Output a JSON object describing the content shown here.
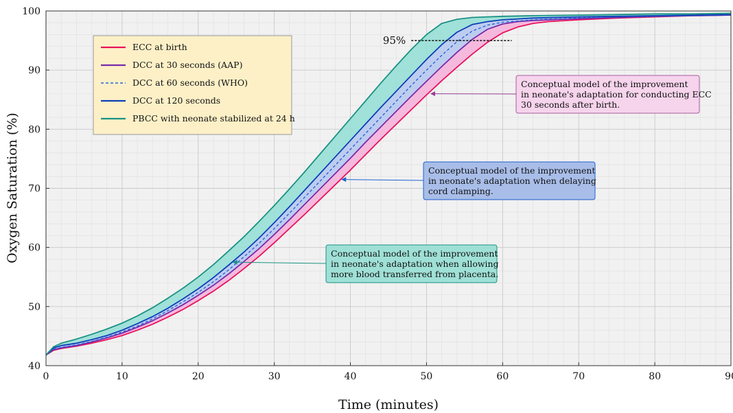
{
  "chart_data": {
    "type": "line",
    "xlabel": "Time (minutes)",
    "ylabel": "Oxygen Saturation (%)",
    "xlim": [
      0,
      90
    ],
    "ylim": [
      40,
      100
    ],
    "xticks": [
      "0",
      "10",
      "20",
      "30",
      "40",
      "50",
      "60",
      "70",
      "80",
      "90"
    ],
    "yticks": [
      "40",
      "50",
      "60",
      "70",
      "80",
      "90",
      "100"
    ],
    "grid": true,
    "legend_position": "top-left",
    "legend_background": "#fdf0c7",
    "series": [
      {
        "name": "ECC at birth",
        "color": "#e8125c",
        "dash": "solid",
        "x": [
          0,
          1,
          2,
          4,
          6,
          8,
          10,
          12,
          14,
          16,
          18,
          20,
          22,
          24,
          26,
          28,
          30,
          32,
          34,
          36,
          38,
          40,
          42,
          44,
          46,
          48,
          50,
          52,
          54,
          56,
          58,
          60,
          62,
          64,
          66,
          70,
          75,
          80,
          85,
          90
        ],
        "y": [
          41.8,
          42.6,
          42.9,
          43.3,
          43.8,
          44.4,
          45.1,
          46.0,
          47.0,
          48.2,
          49.5,
          51.0,
          52.6,
          54.4,
          56.4,
          58.5,
          60.8,
          63.2,
          65.6,
          68.1,
          70.6,
          73.1,
          75.7,
          78.3,
          80.8,
          83.3,
          85.8,
          88.2,
          90.5,
          92.7,
          94.7,
          96.3,
          97.3,
          97.9,
          98.2,
          98.5,
          98.8,
          99.0,
          99.2,
          99.3
        ]
      },
      {
        "name": "DCC at 30 seconds (AAP)",
        "color": "#7b2aa8",
        "dash": "solid",
        "x": [
          0,
          1,
          2,
          4,
          6,
          8,
          10,
          12,
          14,
          16,
          18,
          20,
          22,
          24,
          26,
          28,
          30,
          32,
          34,
          36,
          38,
          40,
          42,
          44,
          46,
          48,
          50,
          52,
          54,
          56,
          58,
          60,
          62,
          64,
          70,
          75,
          80,
          85,
          90
        ],
        "y": [
          41.8,
          42.7,
          43.0,
          43.4,
          44.0,
          44.7,
          45.5,
          46.5,
          47.6,
          48.9,
          50.3,
          51.9,
          53.6,
          55.5,
          57.6,
          59.8,
          62.2,
          64.7,
          67.3,
          69.9,
          72.5,
          75.1,
          77.8,
          80.4,
          83.0,
          85.6,
          88.1,
          90.6,
          93.0,
          95.2,
          96.9,
          97.8,
          98.2,
          98.4,
          98.7,
          98.9,
          99.1,
          99.2,
          99.3
        ]
      },
      {
        "name": "DCC at 60 seconds (WHO)",
        "color": "#2b62d6",
        "dash": "dashed",
        "x": [
          0,
          1,
          2,
          4,
          6,
          8,
          10,
          12,
          14,
          16,
          18,
          20,
          22,
          24,
          26,
          28,
          30,
          32,
          34,
          36,
          38,
          40,
          42,
          44,
          46,
          48,
          50,
          52,
          54,
          56,
          58,
          60,
          64,
          70,
          75,
          80,
          85,
          90
        ],
        "y": [
          41.8,
          42.8,
          43.1,
          43.5,
          44.1,
          44.8,
          45.7,
          46.7,
          47.9,
          49.3,
          50.8,
          52.4,
          54.2,
          56.2,
          58.4,
          60.7,
          63.2,
          65.8,
          68.5,
          71.2,
          73.9,
          76.6,
          79.3,
          82.0,
          84.7,
          87.4,
          90.0,
          92.5,
          94.8,
          96.6,
          97.6,
          98.1,
          98.5,
          98.8,
          99.0,
          99.1,
          99.2,
          99.3
        ]
      },
      {
        "name": "DCC at 120 seconds",
        "color": "#0b3fb8",
        "dash": "solid",
        "x": [
          0,
          1,
          2,
          4,
          6,
          8,
          10,
          12,
          14,
          16,
          18,
          20,
          22,
          24,
          26,
          28,
          30,
          32,
          34,
          36,
          38,
          40,
          42,
          44,
          46,
          48,
          50,
          52,
          54,
          56,
          58,
          60,
          64,
          70,
          75,
          80,
          85,
          90
        ],
        "y": [
          41.8,
          43.0,
          43.4,
          43.8,
          44.4,
          45.1,
          46.0,
          47.1,
          48.3,
          49.7,
          51.3,
          53.0,
          54.9,
          57.0,
          59.2,
          61.6,
          64.2,
          66.9,
          69.7,
          72.5,
          75.3,
          78.1,
          80.9,
          83.7,
          86.4,
          89.1,
          91.8,
          94.3,
          96.4,
          97.7,
          98.2,
          98.5,
          98.8,
          99.0,
          99.1,
          99.2,
          99.3,
          99.4
        ]
      },
      {
        "name": "PBCC with neonate stabilized at 24 h",
        "color": "#1a9282",
        "dash": "solid",
        "x": [
          0,
          1,
          2,
          4,
          6,
          8,
          10,
          12,
          14,
          16,
          18,
          20,
          22,
          24,
          26,
          28,
          30,
          32,
          34,
          36,
          38,
          40,
          42,
          44,
          46,
          48,
          50,
          52,
          54,
          56,
          58,
          60,
          64,
          70,
          75,
          80,
          85,
          90
        ],
        "y": [
          41.8,
          43.2,
          43.8,
          44.5,
          45.3,
          46.2,
          47.2,
          48.4,
          49.8,
          51.4,
          53.1,
          55.0,
          57.1,
          59.4,
          61.8,
          64.4,
          67.1,
          69.9,
          72.8,
          75.8,
          78.8,
          81.8,
          84.8,
          87.8,
          90.7,
          93.5,
          96.0,
          97.9,
          98.6,
          98.9,
          99.0,
          99.1,
          99.2,
          99.3,
          99.4,
          99.5,
          99.5,
          99.6
        ]
      }
    ],
    "shaded_regions": [
      {
        "between": [
          "ECC at birth",
          "DCC at 30 seconds (AAP)"
        ],
        "color": "#f5b3dc"
      },
      {
        "between": [
          "DCC at 30 seconds (AAP)",
          "DCC at 120 seconds"
        ],
        "color": "#b7c9f0"
      },
      {
        "between": [
          "DCC at 120 seconds",
          "PBCC with neonate stabilized at 24 h"
        ],
        "color": "#97dfd6"
      }
    ],
    "reference_line": {
      "label": "95%",
      "y": 95,
      "x_start": 48,
      "x_end": 61.2
    },
    "annotations": [
      {
        "lines": [
          "Conceptual model of the improvement",
          "in neonate's adaptation for conducting ECC",
          "30 seconds after birth."
        ],
        "bg": "#f6d4ec",
        "border": "#a85ba0",
        "arrow_color": "#9a3d94",
        "arrow_to": [
          50.5,
          86
        ]
      },
      {
        "lines": [
          "Conceptual model of the improvement",
          "in neonate's adaptation when delaying",
          "cord clamping."
        ],
        "bg": "#a8bde8",
        "border": "#1f62d0",
        "arrow_color": "#1f62d0",
        "arrow_to": [
          38.8,
          71.5
        ]
      },
      {
        "lines": [
          "Conceptual model of the improvement",
          "in neonate's adaptation when allowing",
          "more blood transferred from placenta."
        ],
        "bg": "#9fe0d6",
        "border": "#1a9282",
        "arrow_color": "#1a9282",
        "arrow_to": [
          24.5,
          57.5
        ]
      }
    ]
  }
}
